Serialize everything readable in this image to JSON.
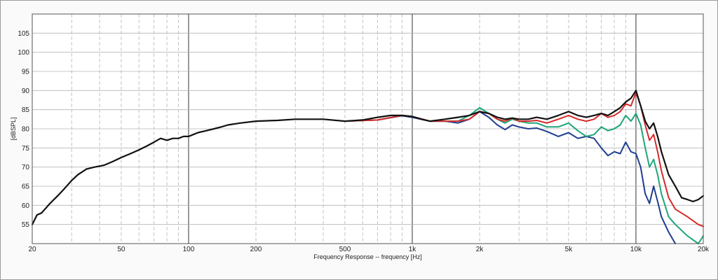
{
  "chart_data": {
    "type": "line",
    "xlabel": "Frequency Response -- frequency [Hz]",
    "ylabel": "[dBSPL]",
    "xscale": "log",
    "xlim": [
      20,
      20000
    ],
    "ylim": [
      50,
      110
    ],
    "grid": true,
    "x_tick_values": [
      20,
      50,
      100,
      200,
      500,
      1000,
      2000,
      5000,
      10000,
      20000
    ],
    "x_tick_labels": [
      "20",
      "50",
      "100",
      "200",
      "500",
      "1k",
      "2k",
      "5k",
      "10k",
      "20k"
    ],
    "y_tick_values": [
      55,
      60,
      65,
      70,
      75,
      80,
      85,
      90,
      95,
      100,
      105
    ],
    "y_tick_labels": [
      "55",
      "60",
      "65",
      "70",
      "75",
      "80",
      "85",
      "90",
      "95",
      "100",
      "105"
    ],
    "series": [
      {
        "color": "#1f3e8f",
        "x": [
          500,
          700,
          900,
          1000,
          1200,
          1400,
          1600,
          1800,
          2000,
          2200,
          2400,
          2600,
          2800,
          3000,
          3300,
          3600,
          4000,
          4500,
          5000,
          5500,
          6000,
          6500,
          7000,
          7500,
          8000,
          8500,
          9000,
          9500,
          10000,
          10500,
          11000,
          11500,
          12000,
          12500,
          13000,
          14000,
          15000
        ],
        "y": [
          82,
          82.3,
          83.4,
          83,
          82,
          82,
          81.5,
          82.5,
          84.5,
          83,
          81,
          79.8,
          81,
          80.5,
          80,
          80.2,
          79.3,
          78,
          79,
          77.5,
          78,
          77.5,
          75,
          73,
          74,
          73.5,
          76.5,
          74,
          73.5,
          70,
          63,
          60.5,
          65,
          61,
          57,
          53,
          49
        ]
      },
      {
        "color": "#1ea67a",
        "x": [
          500,
          700,
          900,
          1000,
          1200,
          1400,
          1600,
          1800,
          2000,
          2200,
          2400,
          2600,
          2800,
          3000,
          3300,
          3600,
          4000,
          4500,
          5000,
          5500,
          6000,
          6500,
          7000,
          7500,
          8000,
          8500,
          9000,
          9500,
          10000,
          10500,
          11000,
          11500,
          12000,
          12500,
          13000,
          14000,
          15000,
          17000,
          19000,
          20000
        ],
        "y": [
          82,
          82.3,
          83.5,
          83.2,
          82,
          82,
          82,
          83.5,
          85.5,
          84,
          82.5,
          81.5,
          82.5,
          82,
          81.5,
          81.5,
          80.5,
          80.5,
          81.5,
          79.5,
          78,
          78.5,
          80.5,
          79.5,
          80,
          81,
          83.5,
          82,
          84,
          81,
          75,
          70,
          72,
          68,
          63,
          57,
          55,
          52,
          50,
          52
        ]
      },
      {
        "color": "#d62a2a",
        "x": [
          500,
          700,
          900,
          1000,
          1200,
          1400,
          1600,
          1800,
          2000,
          2200,
          2400,
          2600,
          2800,
          3000,
          3300,
          3600,
          4000,
          4500,
          5000,
          5500,
          6000,
          6500,
          7000,
          7500,
          8000,
          8500,
          9000,
          9500,
          10000,
          10500,
          11000,
          11500,
          12000,
          12500,
          13000,
          14000,
          15000,
          17000,
          19000,
          20000
        ],
        "y": [
          82,
          82.3,
          83.5,
          83.2,
          82,
          82,
          82,
          82.5,
          84.5,
          84,
          82.5,
          82,
          82.8,
          82,
          82,
          82.2,
          81.5,
          82.5,
          83.5,
          82.5,
          82,
          82.5,
          84,
          83,
          83.5,
          84.5,
          86.5,
          86,
          89.5,
          86,
          81,
          77,
          78.5,
          74,
          69,
          62,
          59,
          57,
          55,
          54.5
        ]
      },
      {
        "color": "#111111",
        "x": [
          20,
          21,
          22,
          24,
          26,
          28,
          30,
          32,
          35,
          38,
          42,
          46,
          50,
          55,
          60,
          65,
          70,
          75,
          80,
          85,
          90,
          95,
          100,
          105,
          110,
          120,
          130,
          140,
          150,
          170,
          200,
          250,
          300,
          400,
          500,
          600,
          700,
          800,
          900,
          1000,
          1100,
          1200,
          1400,
          1600,
          1800,
          2000,
          2200,
          2400,
          2600,
          2800,
          3000,
          3300,
          3600,
          4000,
          4500,
          5000,
          5500,
          6000,
          6500,
          7000,
          7500,
          8000,
          8500,
          9000,
          9500,
          10000,
          10500,
          11000,
          11500,
          12000,
          12500,
          13000,
          14000,
          15000,
          16000,
          17000,
          18000,
          19000,
          20000
        ],
        "y": [
          55,
          57.5,
          58,
          60.5,
          62.5,
          64.5,
          66.5,
          68,
          69.5,
          70,
          70.5,
          71.5,
          72.5,
          73.5,
          74.5,
          75.5,
          76.5,
          77.5,
          77,
          77.5,
          77.5,
          78,
          78,
          78.5,
          79,
          79.5,
          80,
          80.5,
          81,
          81.5,
          82,
          82.2,
          82.5,
          82.5,
          82,
          82.3,
          83,
          83.5,
          83.5,
          83.2,
          82.5,
          82,
          82.5,
          83,
          83.5,
          84.5,
          84,
          83,
          82.5,
          82.8,
          82.5,
          82.5,
          83,
          82.5,
          83.5,
          84.5,
          83.5,
          83,
          83.5,
          84,
          83.5,
          84.5,
          85.5,
          87,
          88,
          90,
          86,
          82,
          80,
          81.5,
          78,
          74,
          68,
          65,
          62,
          61.5,
          61,
          61.5,
          62.5
        ]
      }
    ]
  }
}
